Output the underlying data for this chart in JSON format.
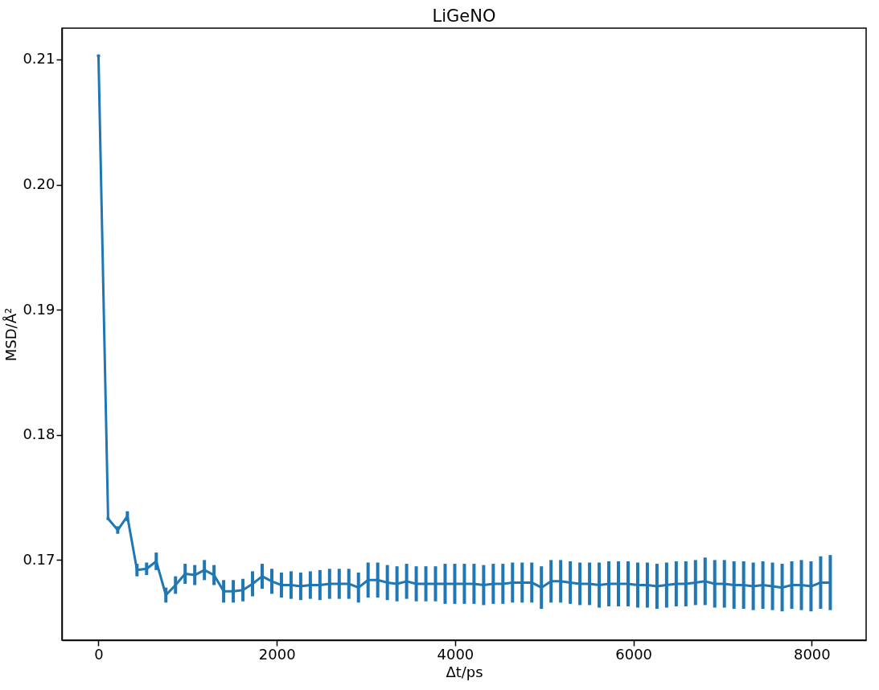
{
  "chart_data": {
    "type": "line",
    "title": "LiGeNO",
    "xlabel": "Δt/ps",
    "ylabel": "MSD/Å²",
    "x": [
      0,
      108,
      216,
      324,
      432,
      540,
      648,
      756,
      864,
      972,
      1080,
      1188,
      1296,
      1404,
      1512,
      1620,
      1728,
      1836,
      1944,
      2052,
      2160,
      2268,
      2376,
      2484,
      2592,
      2700,
      2808,
      2916,
      3024,
      3132,
      3240,
      3348,
      3456,
      3564,
      3672,
      3780,
      3888,
      3996,
      4104,
      4212,
      4320,
      4428,
      4536,
      4644,
      4752,
      4860,
      4968,
      5076,
      5184,
      5292,
      5400,
      5508,
      5616,
      5724,
      5832,
      5940,
      6048,
      6156,
      6264,
      6372,
      6480,
      6588,
      6696,
      6804,
      6912,
      7020,
      7128,
      7236,
      7344,
      7452,
      7560,
      7668,
      7776,
      7884,
      7992,
      8100,
      8208
    ],
    "series": [
      {
        "color": "#1f77b4",
        "values": [
          0.2103,
          0.1733,
          0.1724,
          0.1735,
          0.1692,
          0.1693,
          0.1699,
          0.1672,
          0.168,
          0.1689,
          0.1688,
          0.1692,
          0.1688,
          0.1675,
          0.1675,
          0.1676,
          0.1681,
          0.1687,
          0.1683,
          0.168,
          0.168,
          0.1679,
          0.168,
          0.168,
          0.1681,
          0.1681,
          0.1681,
          0.1678,
          0.1684,
          0.1684,
          0.1682,
          0.1681,
          0.1683,
          0.1681,
          0.1681,
          0.1681,
          0.1681,
          0.1681,
          0.1681,
          0.1681,
          0.168,
          0.1681,
          0.1681,
          0.1682,
          0.1682,
          0.1682,
          0.1678,
          0.1683,
          0.1683,
          0.1682,
          0.1681,
          0.1681,
          0.168,
          0.1681,
          0.1681,
          0.1681,
          0.168,
          0.168,
          0.1679,
          0.168,
          0.1681,
          0.1681,
          0.1682,
          0.1683,
          0.1681,
          0.1681,
          0.168,
          0.168,
          0.1679,
          0.168,
          0.1679,
          0.1678,
          0.168,
          0.168,
          0.1679,
          0.1682,
          0.1682
        ],
        "errors": [
          0.0001,
          0.0001,
          0.0003,
          0.0004,
          0.0005,
          0.0005,
          0.0007,
          0.0006,
          0.0007,
          0.0008,
          0.0008,
          0.0008,
          0.0008,
          0.0009,
          0.0009,
          0.0009,
          0.001,
          0.001,
          0.001,
          0.001,
          0.0011,
          0.0011,
          0.0011,
          0.0012,
          0.0012,
          0.0012,
          0.0012,
          0.0012,
          0.0014,
          0.0014,
          0.0014,
          0.0014,
          0.0014,
          0.0014,
          0.0014,
          0.0014,
          0.0016,
          0.0016,
          0.0016,
          0.0016,
          0.0016,
          0.0016,
          0.0016,
          0.0016,
          0.0016,
          0.0016,
          0.0017,
          0.0017,
          0.0017,
          0.0017,
          0.0017,
          0.0017,
          0.0018,
          0.0018,
          0.0018,
          0.0018,
          0.0018,
          0.0018,
          0.0018,
          0.0018,
          0.0018,
          0.0018,
          0.0018,
          0.0019,
          0.0019,
          0.0019,
          0.0019,
          0.0019,
          0.0019,
          0.0019,
          0.0019,
          0.0019,
          0.0019,
          0.002,
          0.002,
          0.0021,
          0.0022
        ]
      }
    ],
    "xlim": [
      -410,
      8610
    ],
    "ylim": [
      0.1636,
      0.2125
    ],
    "xticks": [
      0,
      2000,
      4000,
      6000,
      8000
    ],
    "yticks": [
      0.17,
      0.18,
      0.19,
      {
        "value": 0.2,
        "label": "0.20"
      },
      0.21
    ],
    "grid": false,
    "marker": "none",
    "line_style": "solid"
  }
}
